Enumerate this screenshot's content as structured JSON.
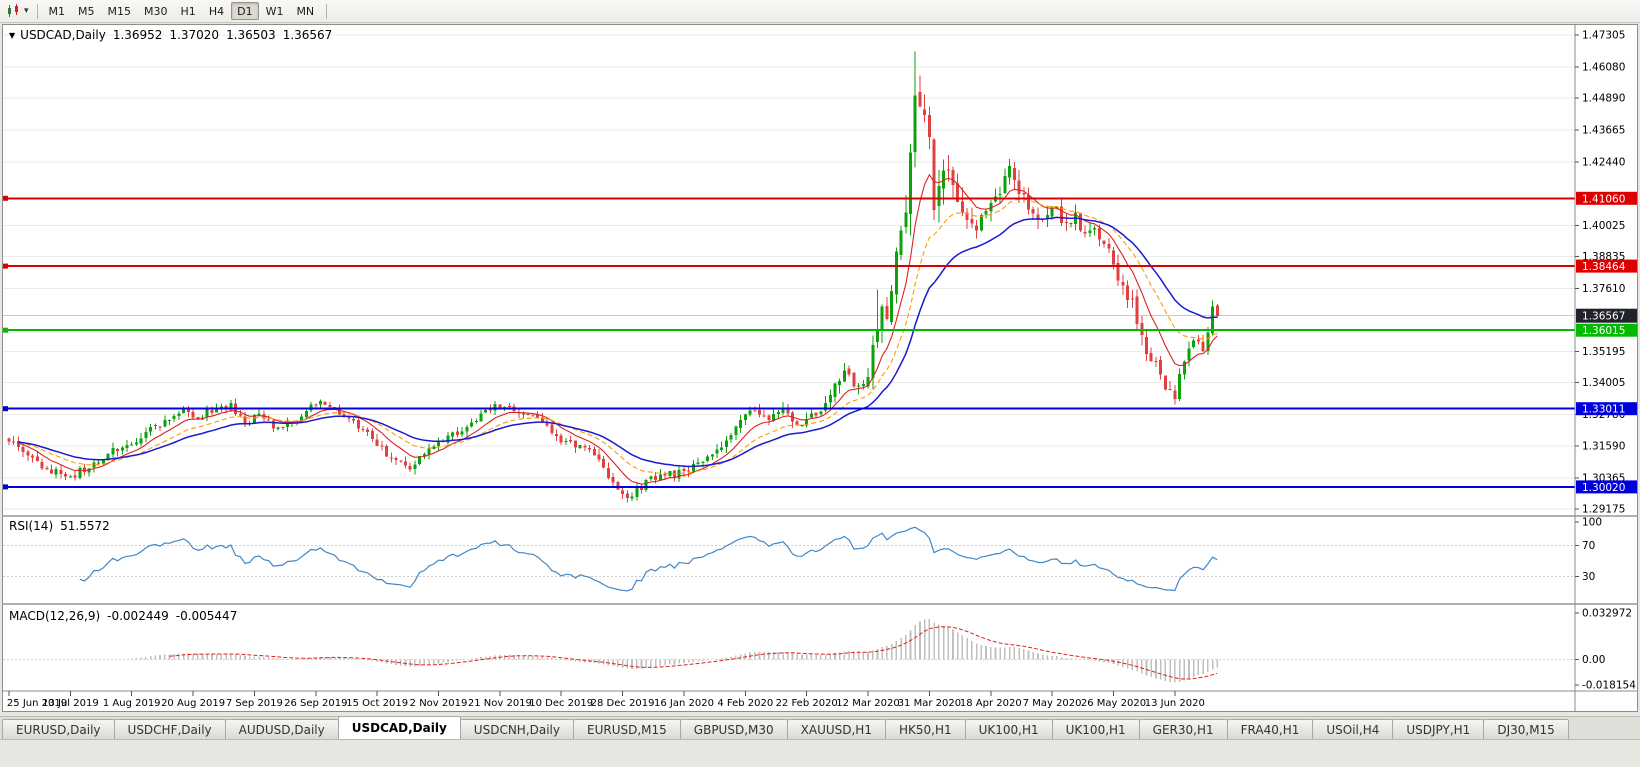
{
  "toolbar": {
    "timeframes": [
      "M1",
      "M5",
      "M15",
      "M30",
      "H1",
      "H4",
      "D1",
      "W1",
      "MN"
    ],
    "selected_timeframe": "D1"
  },
  "chart_header": {
    "collapse_icon": "▼",
    "symbol": "USDCAD,Daily",
    "open": "1.36952",
    "high": "1.37020",
    "low": "1.36503",
    "close": "1.36567"
  },
  "price_axis": {
    "ticks": [
      "1.47305",
      "1.46080",
      "1.44890",
      "1.43665",
      "1.42440",
      "1.40025",
      "1.38835",
      "1.37610",
      "1.35195",
      "1.34005",
      "1.32780",
      "1.31590",
      "1.30365",
      "1.29175"
    ],
    "current_price": "1.36567",
    "current_price_bg": "#20222c"
  },
  "hlines": [
    {
      "price": 1.4106,
      "label": "1.41060",
      "color": "#dd0000"
    },
    {
      "price": 1.38464,
      "label": "1.38464",
      "color": "#dd0000"
    },
    {
      "price": 1.36015,
      "label": "1.36015",
      "color": "#00bb00"
    },
    {
      "price": 1.33011,
      "label": "1.33011",
      "color": "#0000dd"
    },
    {
      "price": 1.3002,
      "label": "1.30020",
      "color": "#0000dd"
    }
  ],
  "rsi_panel": {
    "name": "RSI(14)",
    "value": "51.5572",
    "axis_ticks": [
      "100",
      "70",
      "30"
    ],
    "axis_values": [
      100,
      70,
      30
    ],
    "level_lines": [
      70,
      30
    ],
    "line_color": "#4187c7"
  },
  "macd_panel": {
    "name": "MACD(12,26,9)",
    "value1": "-0.002449",
    "value2": "-0.005447",
    "axis_ticks": [
      "0.032972",
      "0.00",
      "-0.018154"
    ],
    "axis_values": [
      0.032972,
      0,
      -0.018154
    ],
    "hist_color": "#bfbfbf",
    "signal_color": "#e02020"
  },
  "time_axis": [
    "25 Jun 2019",
    "13 Jul 2019",
    "1 Aug 2019",
    "20 Aug 2019",
    "7 Sep 2019",
    "26 Sep 2019",
    "15 Oct 2019",
    "2 Nov 2019",
    "21 Nov 2019",
    "10 Dec 2019",
    "28 Dec 2019",
    "16 Jan 2020",
    "4 Feb 2020",
    "22 Feb 2020",
    "12 Mar 2020",
    "31 Mar 2020",
    "18 Apr 2020",
    "7 May 2020",
    "26 May 2020",
    "13 Jun 2020"
  ],
  "tabs": {
    "items": [
      "EURUSD,Daily",
      "USDCHF,Daily",
      "AUDUSD,Daily",
      "USDCAD,Daily",
      "USDCNH,Daily",
      "EURUSD,M15",
      "GBPUSD,M30",
      "XAUUSD,H1",
      "HK50,H1",
      "UK100,H1",
      "UK100,H1",
      "GER30,H1",
      "FRA40,H1",
      "USOil,H4",
      "USDJPY,H1",
      "DJ30,M15"
    ],
    "active_index": 3
  },
  "chart_data": {
    "type": "candlestick",
    "symbol": "USDCAD",
    "timeframe": "Daily",
    "num_bars": 257,
    "price_range": [
      1.29175,
      1.47305
    ],
    "label_every": 13,
    "last_bar": {
      "open": 1.36952,
      "high": 1.3702,
      "low": 1.36503,
      "close": 1.36567
    },
    "close_anchors": [
      [
        0,
        1.3175
      ],
      [
        4,
        1.3122
      ],
      [
        8,
        1.3068
      ],
      [
        13,
        1.3042
      ],
      [
        17,
        1.3072
      ],
      [
        21,
        1.3128
      ],
      [
        25,
        1.3162
      ],
      [
        29,
        1.3212
      ],
      [
        33,
        1.3258
      ],
      [
        37,
        1.3298
      ],
      [
        40,
        1.3262
      ],
      [
        44,
        1.3302
      ],
      [
        47,
        1.3322
      ],
      [
        50,
        1.324
      ],
      [
        53,
        1.3282
      ],
      [
        56,
        1.3226
      ],
      [
        59,
        1.3248
      ],
      [
        63,
        1.3292
      ],
      [
        66,
        1.333
      ],
      [
        69,
        1.3302
      ],
      [
        73,
        1.3256
      ],
      [
        77,
        1.3186
      ],
      [
        81,
        1.3112
      ],
      [
        85,
        1.3068
      ],
      [
        89,
        1.3148
      ],
      [
        93,
        1.3198
      ],
      [
        97,
        1.3232
      ],
      [
        101,
        1.3296
      ],
      [
        105,
        1.3308
      ],
      [
        109,
        1.3282
      ],
      [
        113,
        1.3252
      ],
      [
        117,
        1.3172
      ],
      [
        121,
        1.3162
      ],
      [
        125,
        1.3106
      ],
      [
        129,
        1.2992
      ],
      [
        132,
        1.2966
      ],
      [
        135,
        1.3028
      ],
      [
        139,
        1.3046
      ],
      [
        143,
        1.3062
      ],
      [
        147,
        1.3098
      ],
      [
        151,
        1.3152
      ],
      [
        155,
        1.3258
      ],
      [
        158,
        1.3292
      ],
      [
        161,
        1.3258
      ],
      [
        164,
        1.3302
      ],
      [
        167,
        1.324
      ],
      [
        170,
        1.3282
      ],
      [
        173,
        1.3322
      ],
      [
        176,
        1.3408
      ],
      [
        178,
        1.3432
      ],
      [
        180,
        1.339
      ],
      [
        182,
        1.3422
      ],
      [
        184,
        1.36
      ],
      [
        185,
        1.3692
      ],
      [
        186,
        1.3644
      ],
      [
        187,
        1.3752
      ],
      [
        188,
        1.3902
      ],
      [
        189,
        1.3982
      ],
      [
        190,
        1.4052
      ],
      [
        191,
        1.4282
      ],
      [
        192,
        1.45
      ],
      [
        193,
        1.4458
      ],
      [
        194,
        1.4424
      ],
      [
        195,
        1.434
      ],
      [
        196,
        1.4062
      ],
      [
        197,
        1.4152
      ],
      [
        199,
        1.4212
      ],
      [
        201,
        1.4092
      ],
      [
        203,
        1.4022
      ],
      [
        205,
        1.3982
      ],
      [
        207,
        1.4058
      ],
      [
        209,
        1.4112
      ],
      [
        211,
        1.4192
      ],
      [
        212,
        1.423
      ],
      [
        214,
        1.4122
      ],
      [
        216,
        1.4062
      ],
      [
        218,
        1.4022
      ],
      [
        220,
        1.4042
      ],
      [
        222,
        1.4072
      ],
      [
        224,
        1.4012
      ],
      [
        226,
        1.4052
      ],
      [
        228,
        1.3972
      ],
      [
        230,
        1.3992
      ],
      [
        232,
        1.3932
      ],
      [
        234,
        1.3852
      ],
      [
        236,
        1.3772
      ],
      [
        238,
        1.3722
      ],
      [
        240,
        1.3582
      ],
      [
        242,
        1.3482
      ],
      [
        244,
        1.3432
      ],
      [
        246,
        1.3372
      ],
      [
        247,
        1.3338
      ],
      [
        249,
        1.3482
      ],
      [
        251,
        1.3562
      ],
      [
        252,
        1.3558
      ],
      [
        253,
        1.3522
      ],
      [
        254,
        1.3592
      ],
      [
        255,
        1.3692
      ],
      [
        256,
        1.36567
      ]
    ],
    "vol_anchors": [
      [
        0,
        0.0045
      ],
      [
        60,
        0.004
      ],
      [
        120,
        0.0042
      ],
      [
        170,
        0.005
      ],
      [
        180,
        0.009
      ],
      [
        186,
        0.013
      ],
      [
        192,
        0.019
      ],
      [
        196,
        0.015
      ],
      [
        203,
        0.011
      ],
      [
        210,
        0.0085
      ],
      [
        220,
        0.007
      ],
      [
        232,
        0.0062
      ],
      [
        240,
        0.008
      ],
      [
        248,
        0.0065
      ],
      [
        256,
        0.005
      ]
    ],
    "high_overrides": {
      "184": 1.3758,
      "192": 1.4668
    },
    "low_overrides": {
      "131": 1.2951,
      "247": 1.3317
    },
    "ma_periods": {
      "fast": 9,
      "mid": 18,
      "slow": 30
    },
    "colors": {
      "up": "#0ea10e",
      "down": "#e14040",
      "ma_fast": "#e02020",
      "ma_mid": "#ff9a00",
      "ma_slow": "#1a1ad0",
      "grid": "#ebebeb"
    }
  }
}
